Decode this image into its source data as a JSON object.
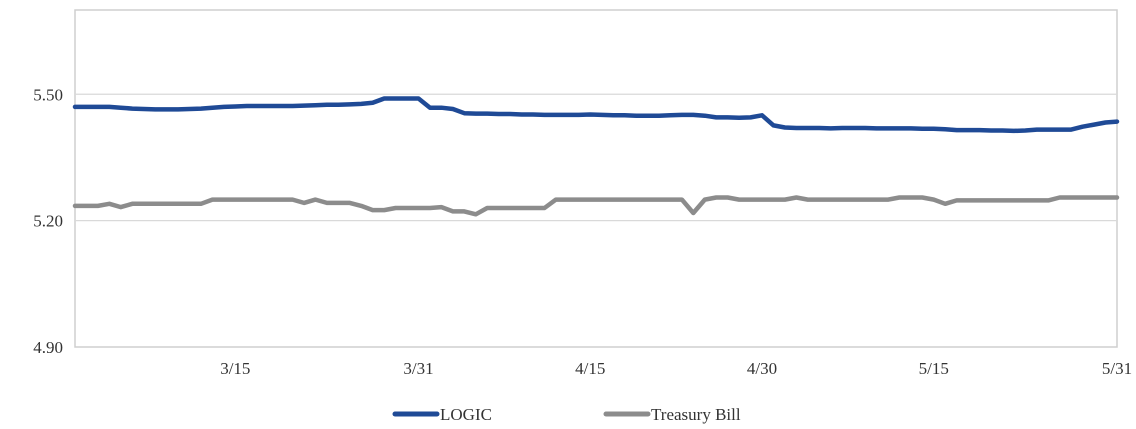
{
  "chart_data": {
    "type": "line",
    "title": "",
    "xlabel": "",
    "ylabel": "",
    "ylim": [
      4.9,
      5.7
    ],
    "y_ticks": [
      "5.50",
      "5.20",
      "4.90"
    ],
    "y_tick_values": [
      5.5,
      5.2,
      4.9
    ],
    "x_ticks": [
      "3/15",
      "3/31",
      "4/15",
      "4/30",
      "5/15",
      "5/31"
    ],
    "grid": "horizontal",
    "legend_position": "bottom",
    "colors": {
      "LOGIC": "#1f4a96",
      "Treasury Bill": "#8c8c8c",
      "grid": "#d9d9d9",
      "frame": "#cfcfcf"
    },
    "dates": [
      "3/1",
      "3/2",
      "3/3",
      "3/4",
      "3/5",
      "3/6",
      "3/7",
      "3/8",
      "3/9",
      "3/10",
      "3/11",
      "3/12",
      "3/13",
      "3/14",
      "3/15",
      "3/16",
      "3/17",
      "3/18",
      "3/19",
      "3/20",
      "3/21",
      "3/22",
      "3/23",
      "3/24",
      "3/25",
      "3/26",
      "3/27",
      "3/28",
      "3/29",
      "3/30",
      "3/31",
      "4/1",
      "4/2",
      "4/3",
      "4/4",
      "4/5",
      "4/6",
      "4/7",
      "4/8",
      "4/9",
      "4/10",
      "4/11",
      "4/12",
      "4/13",
      "4/14",
      "4/15",
      "4/16",
      "4/17",
      "4/18",
      "4/19",
      "4/20",
      "4/21",
      "4/22",
      "4/23",
      "4/24",
      "4/25",
      "4/26",
      "4/27",
      "4/28",
      "4/29",
      "4/30",
      "5/1",
      "5/2",
      "5/3",
      "5/4",
      "5/5",
      "5/6",
      "5/7",
      "5/8",
      "5/9",
      "5/10",
      "5/11",
      "5/12",
      "5/13",
      "5/14",
      "5/15",
      "5/16",
      "5/17",
      "5/18",
      "5/19",
      "5/20",
      "5/21",
      "5/22",
      "5/23",
      "5/24",
      "5/25",
      "5/26",
      "5/27",
      "5/28",
      "5/29",
      "5/30",
      "5/31"
    ],
    "series": [
      {
        "name": "LOGIC",
        "values": [
          5.47,
          5.47,
          5.47,
          5.47,
          5.468,
          5.466,
          5.465,
          5.464,
          5.464,
          5.464,
          5.465,
          5.466,
          5.468,
          5.47,
          5.471,
          5.472,
          5.472,
          5.472,
          5.472,
          5.472,
          5.473,
          5.474,
          5.475,
          5.475,
          5.476,
          5.477,
          5.48,
          5.49,
          5.49,
          5.49,
          5.49,
          5.468,
          5.468,
          5.465,
          5.455,
          5.454,
          5.454,
          5.453,
          5.453,
          5.452,
          5.452,
          5.451,
          5.451,
          5.451,
          5.451,
          5.452,
          5.451,
          5.45,
          5.45,
          5.449,
          5.449,
          5.449,
          5.45,
          5.451,
          5.451,
          5.449,
          5.445,
          5.445,
          5.444,
          5.445,
          5.45,
          5.426,
          5.421,
          5.42,
          5.42,
          5.42,
          5.419,
          5.42,
          5.42,
          5.42,
          5.419,
          5.419,
          5.419,
          5.419,
          5.418,
          5.418,
          5.417,
          5.415,
          5.415,
          5.415,
          5.414,
          5.414,
          5.413,
          5.414,
          5.416,
          5.416,
          5.416,
          5.416,
          5.423,
          5.428,
          5.433,
          5.435
        ]
      },
      {
        "name": "Treasury Bill",
        "values": [
          5.235,
          5.235,
          5.235,
          5.24,
          5.232,
          5.24,
          5.24,
          5.24,
          5.24,
          5.24,
          5.24,
          5.24,
          5.25,
          5.25,
          5.25,
          5.25,
          5.25,
          5.25,
          5.25,
          5.25,
          5.242,
          5.25,
          5.242,
          5.242,
          5.242,
          5.235,
          5.225,
          5.225,
          5.23,
          5.23,
          5.23,
          5.23,
          5.232,
          5.222,
          5.222,
          5.215,
          5.23,
          5.23,
          5.23,
          5.23,
          5.23,
          5.23,
          5.25,
          5.25,
          5.25,
          5.25,
          5.25,
          5.25,
          5.25,
          5.25,
          5.25,
          5.25,
          5.25,
          5.25,
          5.218,
          5.25,
          5.255,
          5.255,
          5.25,
          5.25,
          5.25,
          5.25,
          5.25,
          5.255,
          5.25,
          5.25,
          5.25,
          5.25,
          5.25,
          5.25,
          5.25,
          5.25,
          5.255,
          5.255,
          5.255,
          5.25,
          5.24,
          5.248,
          5.248,
          5.248,
          5.248,
          5.248,
          5.248,
          5.248,
          5.248,
          5.248,
          5.255,
          5.255,
          5.255,
          5.255,
          5.255,
          5.255
        ]
      }
    ]
  },
  "legend": {
    "items": [
      {
        "label": "LOGIC"
      },
      {
        "label": "Treasury Bill"
      }
    ]
  }
}
